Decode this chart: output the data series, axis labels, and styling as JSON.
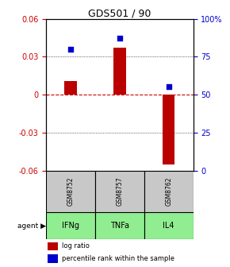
{
  "title": "GDS501 / 90",
  "categories": [
    "IFNg",
    "TNFa",
    "IL4"
  ],
  "gsm_labels": [
    "GSM8752",
    "GSM8757",
    "GSM8762"
  ],
  "log_ratios": [
    0.011,
    0.037,
    -0.055
  ],
  "percentile_ranks": [
    80,
    87,
    55
  ],
  "ylim_left": [
    -0.06,
    0.06
  ],
  "ylim_right": [
    0,
    100
  ],
  "yticks_left": [
    -0.06,
    -0.03,
    0,
    0.03,
    0.06
  ],
  "yticks_right": [
    0,
    25,
    50,
    75,
    100
  ],
  "ytick_labels_right": [
    "0",
    "25",
    "50",
    "75",
    "100%"
  ],
  "bar_color_red": "#BB0000",
  "bar_color_blue": "#0000CC",
  "zero_line_color": "#CC0000",
  "agent_bg_color": "#90EE90",
  "gsm_bg_color": "#C8C8C8",
  "bar_width": 0.25,
  "percentile_marker_size": 16
}
